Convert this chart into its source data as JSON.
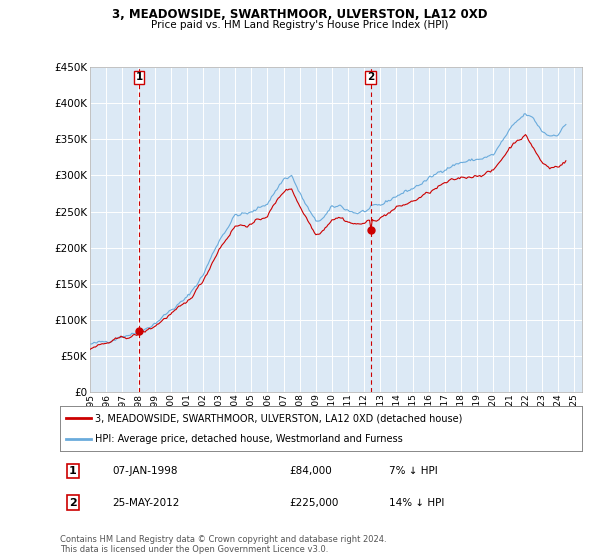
{
  "title": "3, MEADOWSIDE, SWARTHMOOR, ULVERSTON, LA12 0XD",
  "subtitle": "Price paid vs. HM Land Registry's House Price Index (HPI)",
  "hpi_color": "#6aabdc",
  "price_color": "#cc0000",
  "vline_color": "#cc0000",
  "bg_color": "#ffffff",
  "plot_bg_color": "#dce9f5",
  "grid_color": "#ffffff",
  "ylim": [
    0,
    450000
  ],
  "yticks": [
    0,
    50000,
    100000,
    150000,
    200000,
    250000,
    300000,
    350000,
    400000,
    450000
  ],
  "ytick_labels": [
    "£0",
    "£50K",
    "£100K",
    "£150K",
    "£200K",
    "£250K",
    "£300K",
    "£350K",
    "£400K",
    "£450K"
  ],
  "xlim_start": 1995.5,
  "xlim_end": 2025.5,
  "xtick_years": [
    1995,
    1996,
    1997,
    1998,
    1999,
    2000,
    2001,
    2002,
    2003,
    2004,
    2005,
    2006,
    2007,
    2008,
    2009,
    2010,
    2011,
    2012,
    2013,
    2014,
    2015,
    2016,
    2017,
    2018,
    2019,
    2020,
    2021,
    2022,
    2023,
    2024,
    2025
  ],
  "legend_entries": [
    "3, MEADOWSIDE, SWARTHMOOR, ULVERSTON, LA12 0XD (detached house)",
    "HPI: Average price, detached house, Westmorland and Furness"
  ],
  "transaction1_label": "1",
  "transaction1_date": "07-JAN-1998",
  "transaction1_price": "£84,000",
  "transaction1_hpi": "7% ↓ HPI",
  "transaction1_x": 1998.04,
  "transaction1_y": 84000,
  "transaction2_label": "2",
  "transaction2_date": "25-MAY-2012",
  "transaction2_price": "£225,000",
  "transaction2_hpi": "14% ↓ HPI",
  "transaction2_x": 2012.39,
  "transaction2_y": 225000,
  "footer": "Contains HM Land Registry data © Crown copyright and database right 2024.\nThis data is licensed under the Open Government Licence v3.0."
}
